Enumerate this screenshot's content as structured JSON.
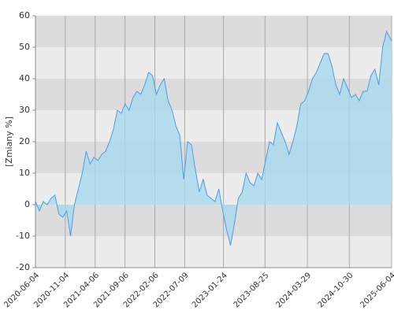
{
  "chart_data": {
    "type": "area",
    "y_label": "[Zmiany %]",
    "x": [
      "2020-06-04",
      "2020-06-24",
      "2020-07-14",
      "2020-08-03",
      "2020-08-23",
      "2020-09-12",
      "2020-10-02",
      "2020-10-22",
      "2020-11-11",
      "2020-12-01",
      "2020-12-21",
      "2021-01-10",
      "2021-01-30",
      "2021-02-19",
      "2021-03-11",
      "2021-03-31",
      "2021-04-20",
      "2021-05-10",
      "2021-05-30",
      "2021-06-19",
      "2021-07-09",
      "2021-07-29",
      "2021-08-18",
      "2021-09-07",
      "2021-09-27",
      "2021-10-17",
      "2021-11-06",
      "2021-11-26",
      "2021-12-16",
      "2022-01-05",
      "2022-01-25",
      "2022-02-14",
      "2022-03-06",
      "2022-03-26",
      "2022-04-15",
      "2022-05-05",
      "2022-05-25",
      "2022-06-14",
      "2022-07-04",
      "2022-07-24",
      "2022-08-13",
      "2022-09-02",
      "2022-09-22",
      "2022-10-12",
      "2022-11-01",
      "2022-11-21",
      "2022-12-11",
      "2022-12-31",
      "2023-01-20",
      "2023-02-09",
      "2023-03-01",
      "2023-03-21",
      "2023-04-10",
      "2023-04-30",
      "2023-05-20",
      "2023-06-09",
      "2023-06-29",
      "2023-07-19",
      "2023-08-08",
      "2023-08-28",
      "2023-09-17",
      "2023-10-07",
      "2023-10-27",
      "2023-11-16",
      "2023-12-06",
      "2023-12-26",
      "2024-01-15",
      "2024-02-04",
      "2024-02-24",
      "2024-03-15",
      "2024-04-04",
      "2024-04-24",
      "2024-05-14",
      "2024-06-03",
      "2024-06-23",
      "2024-07-13",
      "2024-08-02",
      "2024-08-22",
      "2024-09-11",
      "2024-10-01",
      "2024-10-21",
      "2024-11-10",
      "2024-11-30",
      "2024-12-20",
      "2025-01-09",
      "2025-01-29",
      "2025-02-18",
      "2025-03-10",
      "2025-03-30",
      "2025-04-19",
      "2025-05-09",
      "2025-06-04"
    ],
    "series": [
      {
        "color": "#4a9ee8",
        "fill": "#a9d9ee",
        "values": [
          1,
          -2,
          1,
          0,
          2,
          3,
          -3,
          -4,
          -2,
          -10,
          0,
          5,
          10,
          17,
          13,
          15,
          14,
          16,
          17,
          20,
          24,
          30,
          29,
          32,
          30,
          34,
          36,
          35,
          38,
          42,
          41,
          35,
          38,
          40,
          33,
          30,
          25,
          22,
          8,
          20,
          19,
          11,
          4,
          8,
          3,
          2,
          1,
          5,
          -2,
          -8,
          -13,
          -6,
          2,
          4,
          10,
          7,
          6,
          10,
          8,
          14,
          20,
          19,
          26,
          23,
          20,
          16,
          20,
          25,
          32,
          33,
          36,
          40,
          42,
          45,
          48,
          48,
          44,
          38,
          35,
          40,
          37,
          34,
          35,
          33,
          36,
          36,
          41,
          43,
          38,
          50,
          55,
          52
        ]
      }
    ],
    "xlim": [
      "2020-06-04",
      "2025-06-04"
    ],
    "xticks": [
      "2020-06-04",
      "2020-11-04",
      "2021-04-06",
      "2021-09-06",
      "2022-02-06",
      "2022-07-09",
      "2023-01-24",
      "2023-08-25",
      "2024-03-29",
      "2024-10-30",
      "2025-06-04"
    ],
    "ylim": [
      -20,
      60
    ],
    "yticks": [
      -20,
      -10,
      0,
      10,
      20,
      30,
      40,
      50,
      60
    ],
    "grid": true
  }
}
